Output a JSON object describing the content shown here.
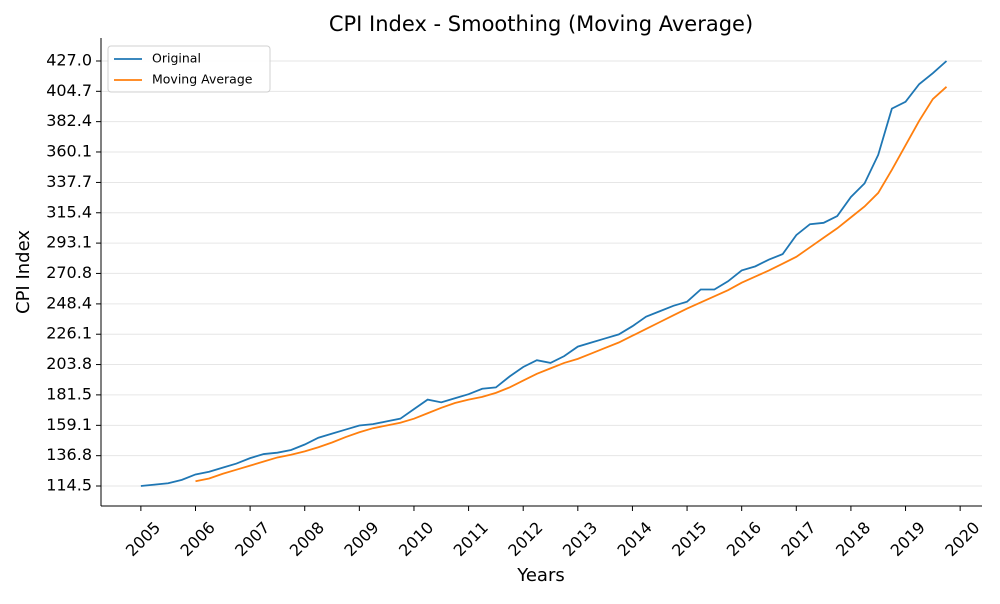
{
  "chart_data": {
    "type": "line",
    "title": "CPI Index - Smoothing (Moving Average)",
    "x_label": "Years",
    "y_label": "CPI Index",
    "x": [
      2005,
      2005.25,
      2005.5,
      2005.75,
      2006,
      2006.25,
      2006.5,
      2006.75,
      2007,
      2007.25,
      2007.5,
      2007.75,
      2008,
      2008.25,
      2008.5,
      2008.75,
      2009,
      2009.25,
      2009.5,
      2009.75,
      2010,
      2010.25,
      2010.5,
      2010.75,
      2011,
      2011.25,
      2011.5,
      2011.75,
      2012,
      2012.25,
      2012.5,
      2012.75,
      2013,
      2013.25,
      2013.5,
      2013.75,
      2014,
      2014.25,
      2014.5,
      2014.75,
      2015,
      2015.25,
      2015.5,
      2015.75,
      2016,
      2016.25,
      2016.5,
      2016.75,
      2017,
      2017.25,
      2017.5,
      2017.75,
      2018,
      2018.25,
      2018.5,
      2018.75,
      2019,
      2019.25,
      2019.5,
      2019.75
    ],
    "series": [
      {
        "name": "Original",
        "color": "#1f77b4",
        "values": [
          114.5,
          115.5,
          116.5,
          119,
          123,
          125,
          128,
          131,
          135,
          138,
          139,
          141,
          145,
          150,
          153,
          156,
          159,
          160,
          162,
          164,
          171,
          178,
          176,
          179,
          182,
          186,
          187,
          195,
          202,
          207,
          205,
          210,
          217,
          220,
          223,
          226,
          232,
          239,
          243,
          247,
          250,
          259,
          259,
          265,
          273,
          276,
          281,
          285,
          299,
          307,
          308,
          313,
          327,
          337,
          358,
          392,
          397,
          410,
          418,
          427
        ]
      },
      {
        "name": "Moving Average",
        "color": "#ff7f0e",
        "values": [
          null,
          null,
          null,
          null,
          118,
          120,
          123.5,
          126.5,
          129.5,
          132.5,
          135.5,
          137.5,
          140,
          143,
          146.5,
          150.5,
          154,
          157,
          159,
          161,
          164,
          168,
          172,
          175.5,
          178,
          180,
          183,
          187,
          192,
          197,
          201,
          205,
          208,
          212,
          216,
          220,
          225,
          230,
          235,
          240,
          245,
          249.5,
          254,
          258.5,
          264,
          268.5,
          273,
          278,
          283,
          290,
          297,
          304,
          312,
          320,
          330,
          347,
          365,
          383,
          399,
          408
        ]
      }
    ],
    "xlim": [
      2004.27,
      2020.4
    ],
    "xticks": [
      2005,
      2006,
      2007,
      2008,
      2009,
      2010,
      2011,
      2012,
      2013,
      2014,
      2015,
      2016,
      2017,
      2018,
      2019,
      2020
    ],
    "ylim": [
      99.8,
      443.9
    ],
    "yticks": [
      114.5,
      136.8,
      159.1,
      181.5,
      203.8,
      226.1,
      248.4,
      270.8,
      293.1,
      315.4,
      337.7,
      360.1,
      382.4,
      404.7,
      {
        "value": 427,
        "label": "427.0"
      }
    ],
    "grid": true,
    "legend": "upper-left"
  }
}
